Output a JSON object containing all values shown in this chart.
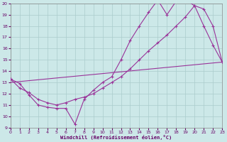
{
  "bg_color": "#cce8e8",
  "line_color": "#993399",
  "grid_color": "#aacccc",
  "xlabel": "Windchill (Refroidissement éolien,°C)",
  "xlim": [
    0,
    23
  ],
  "ylim": [
    9,
    20
  ],
  "xticks": [
    0,
    1,
    2,
    3,
    4,
    5,
    6,
    7,
    8,
    9,
    10,
    11,
    12,
    13,
    14,
    15,
    16,
    17,
    18,
    19,
    20,
    21,
    22,
    23
  ],
  "yticks": [
    9,
    10,
    11,
    12,
    13,
    14,
    15,
    16,
    17,
    18,
    19,
    20
  ],
  "line1_x": [
    0,
    1,
    2,
    3,
    4,
    5,
    6,
    7,
    8,
    9,
    10,
    11,
    12,
    13,
    14,
    15,
    16,
    17,
    18,
    19,
    20,
    21,
    22,
    23
  ],
  "line1_y": [
    13.3,
    12.9,
    11.9,
    11.0,
    10.8,
    10.7,
    10.7,
    9.3,
    11.5,
    12.3,
    13.0,
    13.5,
    15.0,
    16.7,
    18.0,
    19.2,
    20.3,
    19.0,
    20.2,
    20.3,
    19.8,
    18.0,
    16.3,
    14.8
  ],
  "line2_x": [
    0,
    1,
    2,
    3,
    4,
    5,
    6,
    7,
    8,
    9,
    10,
    11,
    12,
    13,
    14,
    15,
    16,
    17,
    18,
    19,
    20,
    21,
    22,
    23
  ],
  "line2_y": [
    13.3,
    12.5,
    12.1,
    11.5,
    11.2,
    11.0,
    11.2,
    11.5,
    11.7,
    12.0,
    12.5,
    13.0,
    13.5,
    14.2,
    15.0,
    15.8,
    16.5,
    17.2,
    18.0,
    18.8,
    19.8,
    19.5,
    18.0,
    14.8
  ],
  "line3_x": [
    0,
    23
  ],
  "line3_y": [
    13.0,
    14.8
  ]
}
